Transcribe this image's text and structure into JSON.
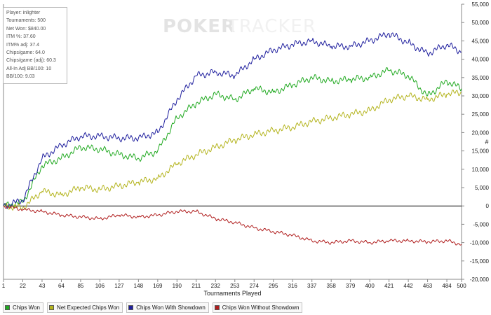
{
  "watermark": {
    "part1": "POKER",
    "part2": "TRACKER"
  },
  "stats_box": {
    "lines": [
      "Player: inlighter",
      "Tournaments: 500",
      "Net Won: $840.00",
      "ITM %: 37.60",
      "ITM% adj: 37.4",
      "Chips/game: 64.0",
      "Chips/game (adj): 60.3",
      "All-In Adj BB/100: 10",
      "BB/100: 9.03"
    ]
  },
  "chart_data": {
    "type": "line",
    "xlabel": "Tournaments Played",
    "ylabel": "#",
    "xlim": [
      1,
      500
    ],
    "ylim": [
      -20000,
      55000
    ],
    "grid": false,
    "legend_position": "bottom",
    "x_ticks": [
      1,
      22,
      43,
      64,
      85,
      106,
      127,
      148,
      169,
      190,
      211,
      232,
      253,
      274,
      295,
      316,
      337,
      358,
      379,
      400,
      421,
      442,
      463,
      484,
      500
    ],
    "y_ticks": [
      -20000,
      -15000,
      -10000,
      -5000,
      0,
      5000,
      10000,
      15000,
      20000,
      25000,
      30000,
      35000,
      40000,
      45000,
      50000,
      55000
    ],
    "y_tick_labels": [
      "-20,000",
      "-15,000",
      "-10,000",
      "-5,000",
      "0",
      "5,000",
      "10,000",
      "15,000",
      "20,000",
      "25,000",
      "30,000",
      "35,000",
      "40,000",
      "45,000",
      "50,000",
      "55,000"
    ],
    "x": [
      1,
      22,
      43,
      64,
      85,
      106,
      127,
      148,
      169,
      190,
      211,
      232,
      253,
      274,
      295,
      316,
      337,
      358,
      379,
      400,
      421,
      442,
      463,
      484,
      500
    ],
    "series": [
      {
        "name": "Chips Won",
        "color": "#22aa22",
        "values": [
          0,
          1000,
          11000,
          13000,
          16000,
          15500,
          14000,
          13000,
          15000,
          24000,
          28000,
          30500,
          29000,
          32000,
          31000,
          33000,
          35000,
          34000,
          34500,
          35000,
          37000,
          35500,
          30000,
          34000,
          32000
        ]
      },
      {
        "name": "Net Expected Chips Won",
        "color": "#b4b41e",
        "values": [
          0,
          -500,
          4000,
          3000,
          5000,
          4500,
          5500,
          6500,
          7500,
          11500,
          14000,
          16000,
          18000,
          19500,
          20500,
          21500,
          23000,
          24000,
          25000,
          26000,
          29000,
          30000,
          29000,
          30500,
          31000
        ]
      },
      {
        "name": "Chips Won With Showdown",
        "color": "#1f1f9e",
        "values": [
          0,
          1500,
          13000,
          16500,
          19000,
          19000,
          18500,
          18500,
          20000,
          29000,
          35500,
          36500,
          35500,
          40000,
          42500,
          44000,
          45000,
          43500,
          43500,
          45000,
          47000,
          44500,
          41500,
          44000,
          42000
        ]
      },
      {
        "name": "Chips Won Without Showdown",
        "color": "#b01e1e",
        "values": [
          0,
          -1000,
          -1500,
          -2500,
          -3000,
          -3500,
          -2500,
          -3000,
          -2500,
          -1500,
          -1500,
          -3500,
          -4500,
          -6000,
          -7000,
          -8000,
          -9500,
          -10000,
          -9500,
          -10000,
          -9500,
          -9500,
          -9800,
          -9500,
          -10500
        ]
      }
    ]
  },
  "legend": {
    "items": [
      {
        "label": "Chips Won",
        "color": "#22aa22"
      },
      {
        "label": "Net Expected Chips Won",
        "color": "#b4b41e"
      },
      {
        "label": "Chips Won With Showdown",
        "color": "#1f1f9e"
      },
      {
        "label": "Chips Won Without Showdown",
        "color": "#b01e1e"
      }
    ]
  }
}
